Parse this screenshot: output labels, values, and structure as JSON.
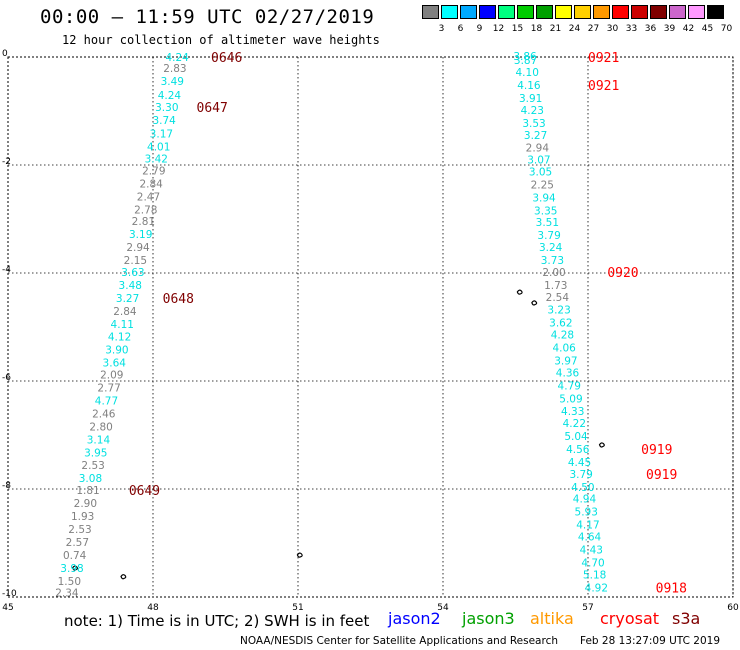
{
  "header": {
    "title": "00:00 – 11:59 UTC 02/27/2019",
    "subtitle": "12 hour collection of altimeter wave heights"
  },
  "legend": {
    "unit": "(ft)",
    "bins": [
      {
        "label": "3",
        "color": "#808080"
      },
      {
        "label": "6",
        "color": "#00ffff"
      },
      {
        "label": "9",
        "color": "#00aaff"
      },
      {
        "label": "12",
        "color": "#0000ff"
      },
      {
        "label": "15",
        "color": "#00ff80"
      },
      {
        "label": "18",
        "color": "#00cc00"
      },
      {
        "label": "21",
        "color": "#00a000"
      },
      {
        "label": "24",
        "color": "#ffff00"
      },
      {
        "label": "27",
        "color": "#ffd000"
      },
      {
        "label": "30",
        "color": "#ff9900"
      },
      {
        "label": "33",
        "color": "#ff0000"
      },
      {
        "label": "36",
        "color": "#cc0000"
      },
      {
        "label": "39",
        "color": "#800000"
      },
      {
        "label": "42",
        "color": "#cc66cc"
      },
      {
        "label": "45",
        "color": "#ff99ff"
      },
      {
        "label": "70",
        "color": "#000000"
      }
    ]
  },
  "map_data": {
    "lon_ticks": [
      "45",
      "48",
      "51",
      "54",
      "57",
      "60"
    ],
    "lat_ticks": [
      "0",
      "-2",
      "-4",
      "-6",
      "-8",
      "-10"
    ],
    "lon_range": [
      45,
      60
    ],
    "lat_range": [
      -10,
      0
    ],
    "tracks": [
      {
        "lon0": 48.5,
        "lon1": 46.2,
        "points": [
          {
            "v": "4.24",
            "c": "#00e0e0",
            "lat": 0.0
          },
          {
            "v": "2.83",
            "c": "#808080",
            "lat": -0.2
          },
          {
            "v": "3.49",
            "c": "#00e0e0",
            "lat": -0.44
          },
          {
            "v": "4.24",
            "c": "#00e0e0",
            "lat": -0.7
          },
          {
            "v": "3.30",
            "c": "#00e0e0",
            "lat": -0.93
          },
          {
            "v": "3.74",
            "c": "#00e0e0",
            "lat": -1.17
          },
          {
            "v": "3.17",
            "c": "#00e0e0",
            "lat": -1.42
          },
          {
            "v": "4.01",
            "c": "#00e0e0",
            "lat": -1.66
          },
          {
            "v": "3.42",
            "c": "#00e0e0",
            "lat": -1.88
          },
          {
            "v": "2.79",
            "c": "#808080",
            "lat": -2.1
          },
          {
            "v": "2.84",
            "c": "#808080",
            "lat": -2.34
          },
          {
            "v": "2.47",
            "c": "#808080",
            "lat": -2.58
          },
          {
            "v": "2.78",
            "c": "#808080",
            "lat": -2.82
          },
          {
            "v": "2.81",
            "c": "#808080",
            "lat": -3.04
          },
          {
            "v": "3.19",
            "c": "#00e0e0",
            "lat": -3.28
          },
          {
            "v": "2.94",
            "c": "#808080",
            "lat": -3.52
          },
          {
            "v": "2.15",
            "c": "#808080",
            "lat": -3.76
          },
          {
            "v": "3.63",
            "c": "#00e0e0",
            "lat": -3.98
          },
          {
            "v": "3.48",
            "c": "#00e0e0",
            "lat": -4.22
          },
          {
            "v": "3.27",
            "c": "#00e0e0",
            "lat": -4.46
          },
          {
            "v": "2.84",
            "c": "#808080",
            "lat": -4.7
          },
          {
            "v": "4.11",
            "c": "#00e0e0",
            "lat": -4.94
          },
          {
            "v": "4.12",
            "c": "#00e0e0",
            "lat": -5.18
          },
          {
            "v": "3.90",
            "c": "#00e0e0",
            "lat": -5.42
          },
          {
            "v": "3.64",
            "c": "#00e0e0",
            "lat": -5.66
          },
          {
            "v": "2.09",
            "c": "#808080",
            "lat": -5.88
          },
          {
            "v": "2.77",
            "c": "#808080",
            "lat": -6.12
          },
          {
            "v": "4.77",
            "c": "#00e0e0",
            "lat": -6.36
          },
          {
            "v": "2.46",
            "c": "#808080",
            "lat": -6.6
          },
          {
            "v": "2.80",
            "c": "#808080",
            "lat": -6.84
          },
          {
            "v": "3.14",
            "c": "#00e0e0",
            "lat": -7.08
          },
          {
            "v": "3.95",
            "c": "#00e0e0",
            "lat": -7.32
          },
          {
            "v": "2.53",
            "c": "#808080",
            "lat": -7.56
          },
          {
            "v": "3.08",
            "c": "#00e0e0",
            "lat": -7.8
          },
          {
            "v": "1.81",
            "c": "#808080",
            "lat": -8.02
          },
          {
            "v": "2.90",
            "c": "#808080",
            "lat": -8.26
          },
          {
            "v": "1.93",
            "c": "#808080",
            "lat": -8.5
          },
          {
            "v": "2.53",
            "c": "#808080",
            "lat": -8.74
          },
          {
            "v": "2.57",
            "c": "#808080",
            "lat": -8.98
          },
          {
            "v": "0.74",
            "c": "#808080",
            "lat": -9.22
          },
          {
            "v": "3.98",
            "c": "#00e0e0",
            "lat": -9.46
          },
          {
            "v": "1.50",
            "c": "#808080",
            "lat": -9.7
          },
          {
            "v": "2.34",
            "c": "#808080",
            "lat": -9.92
          }
        ],
        "times": [
          {
            "label": "0646",
            "color": "#800000",
            "lat": 0.0,
            "lon": 49.2
          },
          {
            "label": "0647",
            "color": "#800000",
            "lat": -0.93,
            "lon": 48.9
          },
          {
            "label": "0648",
            "color": "#800000",
            "lat": -4.46,
            "lon": 48.2
          },
          {
            "label": "0649",
            "color": "#800000",
            "lat": -8.02,
            "lon": 47.5
          }
        ]
      },
      {
        "lon0": 55.7,
        "lon1": 57.2,
        "points": [
          {
            "v": "3.86",
            "c": "#00e0e0",
            "lat": 0.02
          },
          {
            "v": "3.87",
            "c": "#00e0e0",
            "lat": -0.06
          },
          {
            "v": "4.10",
            "c": "#00e0e0",
            "lat": -0.28
          },
          {
            "v": "4.16",
            "c": "#00e0e0",
            "lat": -0.52
          },
          {
            "v": "3.91",
            "c": "#00e0e0",
            "lat": -0.76
          },
          {
            "v": "4.23",
            "c": "#00e0e0",
            "lat": -0.98
          },
          {
            "v": "3.53",
            "c": "#00e0e0",
            "lat": -1.22
          },
          {
            "v": "3.27",
            "c": "#00e0e0",
            "lat": -1.44
          },
          {
            "v": "2.94",
            "c": "#808080",
            "lat": -1.68
          },
          {
            "v": "3.07",
            "c": "#00e0e0",
            "lat": -1.9
          },
          {
            "v": "3.05",
            "c": "#00e0e0",
            "lat": -2.12
          },
          {
            "v": "2.25",
            "c": "#808080",
            "lat": -2.36
          },
          {
            "v": "3.94",
            "c": "#00e0e0",
            "lat": -2.6
          },
          {
            "v": "3.35",
            "c": "#00e0e0",
            "lat": -2.84
          },
          {
            "v": "3.51",
            "c": "#00e0e0",
            "lat": -3.06
          },
          {
            "v": "3.79",
            "c": "#00e0e0",
            "lat": -3.3
          },
          {
            "v": "3.24",
            "c": "#00e0e0",
            "lat": -3.52
          },
          {
            "v": "3.73",
            "c": "#00e0e0",
            "lat": -3.76
          },
          {
            "v": "2.00",
            "c": "#808080",
            "lat": -3.98
          },
          {
            "v": "1.73",
            "c": "#808080",
            "lat": -4.22
          },
          {
            "v": "2.54",
            "c": "#808080",
            "lat": -4.44
          },
          {
            "v": "3.23",
            "c": "#00e0e0",
            "lat": -4.68
          },
          {
            "v": "3.62",
            "c": "#00e0e0",
            "lat": -4.92
          },
          {
            "v": "4.28",
            "c": "#00e0e0",
            "lat": -5.14
          },
          {
            "v": "4.06",
            "c": "#00e0e0",
            "lat": -5.38
          },
          {
            "v": "3.97",
            "c": "#00e0e0",
            "lat": -5.62
          },
          {
            "v": "4.36",
            "c": "#00e0e0",
            "lat": -5.84
          },
          {
            "v": "4.79",
            "c": "#00e0e0",
            "lat": -6.08
          },
          {
            "v": "5.09",
            "c": "#00e0e0",
            "lat": -6.32
          },
          {
            "v": "4.33",
            "c": "#00e0e0",
            "lat": -6.56
          },
          {
            "v": "4.22",
            "c": "#00e0e0",
            "lat": -6.78
          },
          {
            "v": "5.04",
            "c": "#00e0e0",
            "lat": -7.02
          },
          {
            "v": "4.56",
            "c": "#00e0e0",
            "lat": -7.26
          },
          {
            "v": "4.45",
            "c": "#00e0e0",
            "lat": -7.5
          },
          {
            "v": "3.79",
            "c": "#00e0e0",
            "lat": -7.72
          },
          {
            "v": "4.50",
            "c": "#00e0e0",
            "lat": -7.96
          },
          {
            "v": "4.94",
            "c": "#00e0e0",
            "lat": -8.18
          },
          {
            "v": "5.93",
            "c": "#00e0e0",
            "lat": -8.42
          },
          {
            "v": "4.17",
            "c": "#00e0e0",
            "lat": -8.66
          },
          {
            "v": "4.64",
            "c": "#00e0e0",
            "lat": -8.88
          },
          {
            "v": "4.43",
            "c": "#00e0e0",
            "lat": -9.12
          },
          {
            "v": "4.70",
            "c": "#00e0e0",
            "lat": -9.36
          },
          {
            "v": "5.18",
            "c": "#00e0e0",
            "lat": -9.58
          },
          {
            "v": "4.92",
            "c": "#00e0e0",
            "lat": -9.82
          }
        ],
        "times": [
          {
            "label": "0921",
            "color": "#ff0000",
            "lat": 0.0,
            "lon": 57.0
          },
          {
            "label": "0921",
            "color": "#ff0000",
            "lat": -0.52,
            "lon": 57.0
          },
          {
            "label": "0920",
            "color": "#ff0000",
            "lat": -3.98,
            "lon": 57.4
          },
          {
            "label": "0919",
            "color": "#ff0000",
            "lat": -7.26,
            "lon": 58.1
          },
          {
            "label": "0919",
            "color": "#ff0000",
            "lat": -7.72,
            "lon": 58.2
          },
          {
            "label": "0918",
            "color": "#ff0000",
            "lat": -9.82,
            "lon": 58.4
          }
        ]
      }
    ]
  },
  "footer": {
    "note": "note: 1) Time is in UTC; 2) SWH is in feet",
    "satellites": [
      {
        "name": "jason2",
        "color": "#0000ff"
      },
      {
        "name": "jason3",
        "color": "#00a000"
      },
      {
        "name": "altika",
        "color": "#ff9900"
      },
      {
        "name": "cryosat",
        "color": "#ff0000"
      },
      {
        "name": "s3a",
        "color": "#800000"
      }
    ],
    "credit": "NOAA/NESDIS Center for Satellite Applications and Research",
    "timestamp": "Feb 28 13:27:09 UTC 2019"
  }
}
